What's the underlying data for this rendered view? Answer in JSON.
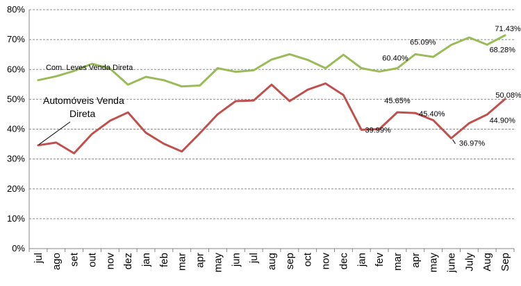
{
  "chart_data": {
    "type": "line",
    "categories": [
      "jul",
      "ago",
      "set",
      "out",
      "nov",
      "dez",
      "jan",
      "feb",
      "mar",
      "apr",
      "may",
      "jun",
      "jul",
      "aug",
      "sep",
      "oct",
      "nov",
      "dec",
      "jan",
      "fev",
      "mar",
      "apr",
      "may",
      "june",
      "July",
      "Aug",
      "Sep"
    ],
    "ylim": [
      0,
      80
    ],
    "ytick_labels": [
      "0%",
      "10%",
      "20%",
      "30%",
      "40%",
      "50%",
      "60%",
      "70%",
      "80%"
    ],
    "grid": "horizontal dashed",
    "series": [
      {
        "name": "Com. Leves Venda Direta",
        "color": "#9BBB59",
        "values": [
          56.4,
          57.7,
          59.5,
          61.9,
          60.3,
          54.9,
          57.5,
          56.4,
          54.3,
          54.6,
          60.4,
          59.2,
          59.7,
          63.3,
          65.1,
          63.2,
          60.4,
          64.9,
          60.4,
          59.3,
          60.4,
          65.09,
          64.2,
          68.2,
          70.7,
          68.28,
          71.43
        ]
      },
      {
        "name": "Automóveis Venda\nDireta",
        "color": "#C0504D",
        "values": [
          34.6,
          35.5,
          31.9,
          38.4,
          42.8,
          45.6,
          38.8,
          35.1,
          32.5,
          38.6,
          45.0,
          49.4,
          49.6,
          54.9,
          49.4,
          53.2,
          55.3,
          51.4,
          39.8,
          39.99,
          45.65,
          45.4,
          43.0,
          36.97,
          42.0,
          44.9,
          50.08
        ]
      }
    ],
    "data_labels": [
      {
        "series": 0,
        "index": 20,
        "text": "60.40%"
      },
      {
        "series": 0,
        "index": 21,
        "text": "65.09%"
      },
      {
        "series": 0,
        "index": 25,
        "text": "68.28%"
      },
      {
        "series": 0,
        "index": 26,
        "text": "71.43%"
      },
      {
        "series": 1,
        "index": 19,
        "text": "39.99%"
      },
      {
        "series": 1,
        "index": 20,
        "text": "45.65%"
      },
      {
        "series": 1,
        "index": 21,
        "text": "45.40%"
      },
      {
        "series": 1,
        "index": 23,
        "text": "36.97%"
      },
      {
        "series": 1,
        "index": 25,
        "text": "44.90%"
      },
      {
        "series": 1,
        "index": 26,
        "text": "50.08%"
      }
    ]
  }
}
